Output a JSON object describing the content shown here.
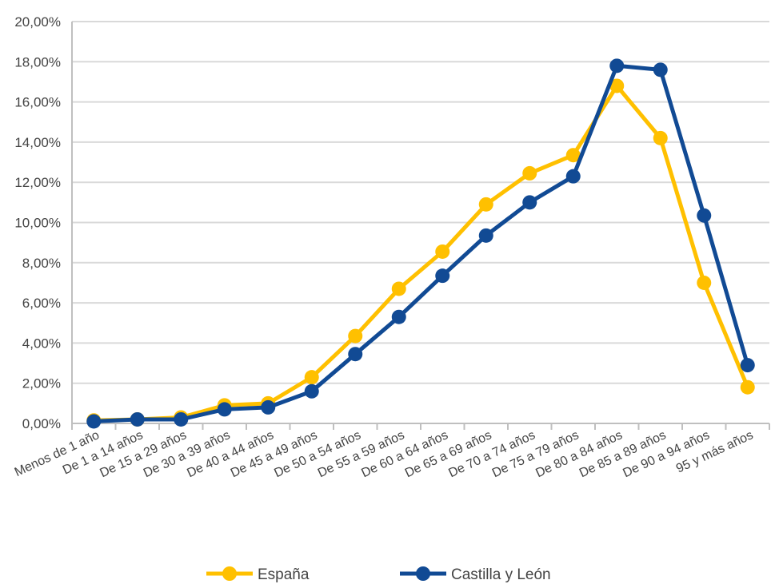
{
  "chart_data": {
    "type": "line",
    "title": "",
    "xlabel": "",
    "ylabel": "",
    "categories": [
      "Menos de 1 año",
      "De 1 a 14 años",
      "De 15 a 29 años",
      "De 30 a 39 años",
      "De 40 a 44 años",
      "De 45 a 49 años",
      "De 50 a 54 años",
      "De 55 a 59 años",
      "De 60 a 64 años",
      "De 65 a 69 años",
      "De 70 a 74 años",
      "De 75 a 79 años",
      "De 80 a 84 años",
      "De 85 a 89 años",
      "De 90 a 94 años",
      "95 y más años"
    ],
    "y_ticks": [
      "0,00%",
      "2,00%",
      "4,00%",
      "6,00%",
      "8,00%",
      "10,00%",
      "12,00%",
      "14,00%",
      "16,00%",
      "18,00%",
      "20,00%"
    ],
    "ylim": [
      0,
      20
    ],
    "grid": true,
    "legend_position": "bottom",
    "series": [
      {
        "name": "España",
        "color": "#FFC000",
        "values": [
          0.15,
          0.2,
          0.3,
          0.9,
          1.0,
          2.3,
          4.35,
          6.7,
          8.55,
          10.9,
          12.45,
          13.35,
          16.8,
          14.2,
          7.0,
          1.8
        ]
      },
      {
        "name": "Castilla y León",
        "color": "#114A94",
        "values": [
          0.1,
          0.2,
          0.2,
          0.7,
          0.8,
          1.6,
          3.45,
          5.3,
          7.35,
          9.35,
          11.0,
          12.3,
          17.8,
          17.6,
          10.35,
          2.9
        ]
      }
    ],
    "gridline_color": "#D9D9D9",
    "axis_color": "#BFBFBF"
  }
}
